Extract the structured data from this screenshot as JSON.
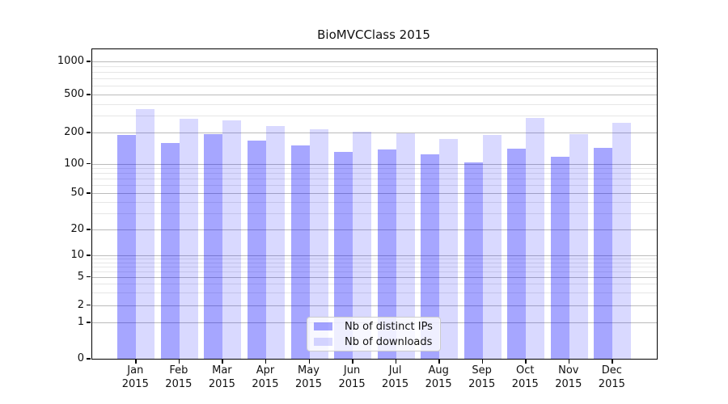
{
  "title": "BioMVCClass 2015",
  "colors": {
    "ips_bar": "rgba(0,0,255,0.35)",
    "downloads_bar": "rgba(0,0,255,0.15)",
    "major_grid": "#bbbbbb",
    "minor_grid": "#e6e6e6"
  },
  "legend": {
    "items": [
      {
        "label": "Nb of distinct IPs",
        "color": "rgba(0,0,255,0.35)"
      },
      {
        "label": "Nb of downloads",
        "color": "rgba(0,0,255,0.15)"
      }
    ],
    "position": "lower center"
  },
  "x_axis": {
    "months": [
      "Jan",
      "Feb",
      "Mar",
      "Apr",
      "May",
      "Jun",
      "Jul",
      "Aug",
      "Sep",
      "Oct",
      "Nov",
      "Dec"
    ],
    "year": "2015"
  },
  "y_axis": {
    "tick_values": [
      0,
      1,
      2,
      5,
      10,
      20,
      50,
      100,
      200,
      500,
      1000
    ],
    "tick_labels": [
      "0",
      "1",
      "2",
      "5",
      "10",
      "20",
      "50",
      "100",
      "200",
      "500",
      "1000"
    ],
    "minor_tick_values": [
      3,
      4,
      6,
      7,
      8,
      9,
      30,
      40,
      60,
      70,
      80,
      90,
      300,
      400,
      600,
      700,
      800,
      900
    ],
    "scale": "symlog"
  },
  "chart_data": {
    "type": "bar",
    "title": "BioMVCClass 2015",
    "categories": [
      "Jan 2015",
      "Feb 2015",
      "Mar 2015",
      "Apr 2015",
      "May 2015",
      "Jun 2015",
      "Jul 2015",
      "Aug 2015",
      "Sep 2015",
      "Oct 2015",
      "Nov 2015",
      "Dec 2015"
    ],
    "series": [
      {
        "name": "Nb of distinct IPs",
        "values": [
          190,
          158,
          193,
          169,
          152,
          131,
          137,
          124,
          104,
          140,
          118,
          142
        ]
      },
      {
        "name": "Nb of downloads",
        "values": [
          350,
          280,
          268,
          234,
          216,
          207,
          198,
          173,
          190,
          286,
          193,
          256
        ]
      }
    ],
    "xlabel": "",
    "ylabel": "",
    "yscale": "symlog",
    "yticks": [
      0,
      1,
      2,
      5,
      10,
      20,
      50,
      100,
      200,
      500,
      1000
    ],
    "ylim": [
      0,
      1300
    ],
    "grid": true,
    "legend_position": "lower center"
  }
}
